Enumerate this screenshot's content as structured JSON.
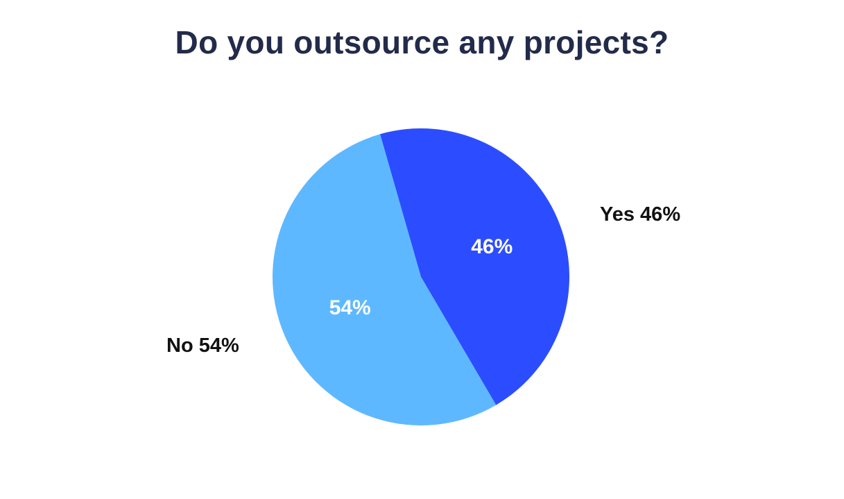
{
  "chart_data": {
    "type": "pie",
    "title": "Do you outsource any projects?",
    "slices": [
      {
        "name": "Yes",
        "value": 46,
        "inner_label": "46%",
        "outer_label": "Yes 46%",
        "color": "#2c4dff"
      },
      {
        "name": "No",
        "value": 54,
        "inner_label": "54%",
        "outer_label": "No 54%",
        "color": "#5eb8ff"
      }
    ],
    "legend": "none"
  }
}
